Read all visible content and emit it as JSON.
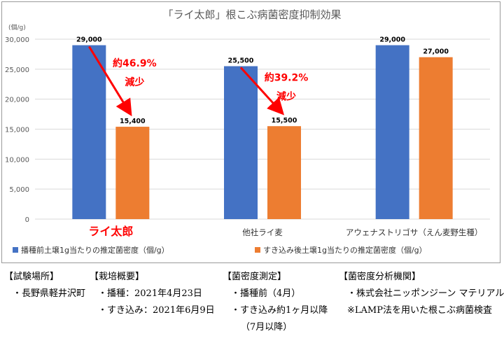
{
  "chart_data": {
    "type": "bar",
    "title": "「ライ太郎」根こぶ病菌密度抑制効果",
    "y_unit_label": "(個/g)",
    "categories": [
      "ライ太郎",
      "他社ライ麦",
      "アウェナストリゴサ（えん麦野生種）"
    ],
    "series": [
      {
        "name": "播種前土壌1g当たりの推定菌密度（個/g）",
        "color": "#4472C4",
        "values": [
          29000,
          25500,
          29000
        ],
        "labels": [
          "29,000",
          "25,500",
          "29,000"
        ]
      },
      {
        "name": "すき込み後土壌1g当たりの推定菌密度（個/g）",
        "color": "#ED7D31",
        "values": [
          15400,
          15500,
          27000
        ],
        "labels": [
          "15,400",
          "15,500",
          "27,000"
        ]
      }
    ],
    "ylim": [
      0,
      30000
    ],
    "yticks": [
      0,
      5000,
      10000,
      15000,
      20000,
      25000,
      30000
    ],
    "ytick_labels": [
      "0",
      "5,000",
      "10,000",
      "15,000",
      "20,000",
      "25,000",
      "30,000"
    ],
    "grid": true,
    "legend": "bottom",
    "highlight_category_color": "#FF0000",
    "annotations": [
      {
        "category": 0,
        "percent_text": "約46.9%",
        "reduction_text": "減少"
      },
      {
        "category": 1,
        "percent_text": "約39.2%",
        "reduction_text": "減少"
      }
    ]
  },
  "info": {
    "location": {
      "heading": "【試験場所】",
      "items": [
        "・長野県軽井沢町"
      ]
    },
    "cultivation": {
      "heading": "【栽培概要】",
      "items": [
        "・播種：2021年4月23日",
        "・すき込み：2021年6月9日"
      ]
    },
    "measurement": {
      "heading": "【菌密度測定】",
      "items": [
        "・播種前（4月）",
        "・すき込み約1ヶ月以降",
        "（7月以降）"
      ]
    },
    "agency": {
      "heading": "【菌密度分析機関】",
      "items": [
        "・株式会社ニッポンジーン マテリアル",
        "※LAMP法を用いた根こぶ病菌検査"
      ]
    }
  }
}
